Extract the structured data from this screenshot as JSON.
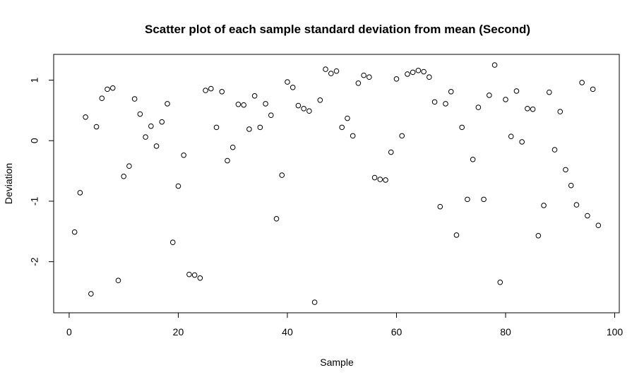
{
  "chart_data": {
    "type": "scatter",
    "title": "Scatter plot of each sample standard deviation from mean (Second)",
    "xlabel": "Sample",
    "ylabel": "Deviation",
    "xlim": [
      -2.84,
      100.84
    ],
    "ylim": [
      -2.844,
      1.426
    ],
    "xticks": [
      0,
      20,
      40,
      60,
      80,
      100
    ],
    "xtick_labels": [
      "0",
      "20",
      "40",
      "60",
      "80",
      "100"
    ],
    "yticks": [
      -2,
      -1,
      0,
      1
    ],
    "ytick_labels": [
      "-2",
      "-1",
      "0",
      "1"
    ],
    "grid": false,
    "legend": "none",
    "marker": "open-circle",
    "x": [
      1,
      2,
      3,
      4,
      5,
      6,
      7,
      8,
      9,
      10,
      11,
      12,
      13,
      14,
      15,
      16,
      17,
      18,
      19,
      20,
      21,
      22,
      23,
      24,
      25,
      26,
      27,
      28,
      29,
      30,
      31,
      32,
      33,
      34,
      35,
      36,
      37,
      38,
      39,
      40,
      41,
      42,
      43,
      44,
      45,
      46,
      47,
      48,
      49,
      50,
      51,
      52,
      53,
      54,
      55,
      56,
      57,
      58,
      59,
      60,
      61,
      62,
      63,
      64,
      65,
      66,
      67,
      68,
      69,
      70,
      71,
      72,
      73,
      74,
      75,
      76,
      77,
      78,
      79,
      80,
      81,
      82,
      83,
      84,
      85,
      86,
      87,
      88,
      89,
      90,
      91,
      92,
      93,
      94,
      95,
      96,
      97
    ],
    "y": [
      -1.51,
      -0.86,
      0.39,
      -2.53,
      0.23,
      0.7,
      0.85,
      0.87,
      -2.31,
      -0.59,
      -0.42,
      0.69,
      0.44,
      0.06,
      0.24,
      -0.09,
      0.31,
      0.61,
      -1.68,
      -0.75,
      -0.24,
      -2.21,
      -2.22,
      -2.27,
      0.83,
      0.86,
      0.22,
      0.81,
      -0.33,
      -0.11,
      0.6,
      0.59,
      0.19,
      0.74,
      0.22,
      0.61,
      0.42,
      -1.29,
      -0.57,
      0.97,
      0.88,
      0.58,
      0.53,
      0.49,
      -2.67,
      0.67,
      1.18,
      1.11,
      1.15,
      0.22,
      0.37,
      0.08,
      0.95,
      1.08,
      1.05,
      -0.61,
      -0.64,
      -0.65,
      -0.19,
      1.02,
      0.08,
      1.1,
      1.13,
      1.16,
      1.14,
      1.05,
      0.64,
      -1.09,
      0.61,
      0.81,
      -1.56,
      0.22,
      -0.97,
      -0.31,
      0.55,
      -0.97,
      0.75,
      1.25,
      -2.34,
      0.68,
      0.07,
      0.82,
      -0.02,
      0.53,
      0.52,
      -1.57,
      -1.07,
      0.8,
      -0.15,
      0.48,
      -0.48,
      -0.74,
      -1.06,
      0.96,
      -1.24,
      0.85,
      -1.4
    ]
  }
}
